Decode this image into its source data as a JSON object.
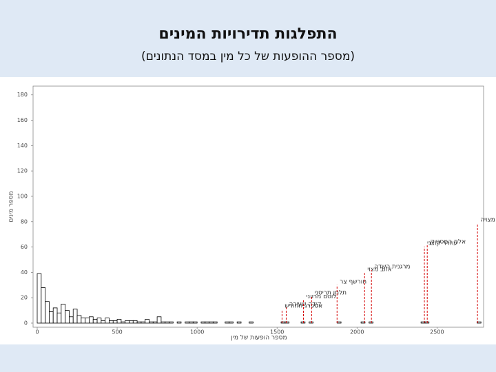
{
  "chart_data": {
    "type": "histogram",
    "title": "התפלגות תדירויות המינים",
    "subtitle": "(מספר ההופעות של כל מין במסד הנתונים)",
    "x_label": "מספר הופעות של מין",
    "y_label": "מספר מינים",
    "bins": [
      0,
      25,
      50,
      75,
      100,
      125,
      150,
      175,
      200,
      225,
      250,
      275,
      300,
      325,
      350,
      375,
      400,
      425,
      450,
      475,
      500,
      525,
      550,
      575,
      600,
      625,
      650,
      675,
      700,
      725,
      750,
      775,
      800,
      825,
      850,
      875,
      900,
      925,
      950,
      975,
      1000,
      1025,
      1050,
      1075,
      1100,
      1125,
      1150,
      1175,
      1200,
      1225,
      1250,
      1275,
      1300,
      1325,
      1350,
      1375,
      1400,
      1425,
      1450,
      1475,
      1500,
      1525,
      1550,
      1575,
      1600,
      1625,
      1650,
      1675,
      1700,
      1725,
      1750,
      1775,
      1800,
      1825,
      1850,
      1875,
      1900,
      1925,
      1950,
      1975,
      2000,
      2025,
      2050,
      2075,
      2100,
      2125,
      2150,
      2175,
      2200,
      2225,
      2250,
      2275,
      2300,
      2325,
      2350,
      2375,
      2400,
      2425,
      2450,
      2475,
      2500,
      2525,
      2550,
      2575,
      2600,
      2625,
      2650,
      2675,
      2700,
      2725,
      2750,
      2775
    ],
    "values": [
      39,
      28,
      17,
      9,
      12,
      8,
      15,
      10,
      5,
      11,
      6,
      4,
      4,
      5,
      3,
      4,
      2,
      4,
      2,
      2,
      3,
      1,
      2,
      2,
      2,
      1,
      1,
      3,
      1,
      1,
      5,
      1,
      1,
      1,
      0,
      1,
      0,
      1,
      1,
      1,
      0,
      1,
      1,
      1,
      1,
      0,
      0,
      1,
      1,
      0,
      1,
      0,
      0,
      1,
      0,
      0,
      0,
      0,
      0,
      0,
      0,
      1,
      1,
      0,
      0,
      0,
      1,
      0,
      1,
      0,
      0,
      0,
      0,
      0,
      0,
      1,
      0,
      0,
      0,
      0,
      0,
      1,
      0,
      1,
      0,
      0,
      0,
      0,
      0,
      0,
      0,
      0,
      0,
      0,
      0,
      0,
      1,
      1,
      0,
      0,
      0,
      0,
      0,
      0,
      0,
      0,
      0,
      0,
      0,
      0,
      1
    ],
    "color": "#ffffff",
    "edge_color": "#000000",
    "xlim": [
      0,
      2800
    ],
    "ylim": [
      0,
      188
    ],
    "xticks": [
      0,
      500,
      1000,
      1500,
      2000,
      2500
    ],
    "yticks": [
      0,
      20,
      40,
      60,
      80,
      100,
      120,
      140,
      160,
      180
    ],
    "annotation_color": "#d40000",
    "annotations": [
      {
        "label": "אספרג החורש",
        "x": 1531
      },
      {
        "label": "קידה שעירה",
        "x": 1557
      },
      {
        "label": "לוטם מרווני",
        "x": 1665
      },
      {
        "label": "תלתן תריסני",
        "x": 1716
      },
      {
        "label": "חורשף צר",
        "x": 1875
      },
      {
        "label": "אזוב מצוי",
        "x": 2047
      },
      {
        "label": "מרגנית השדה",
        "x": 2090
      },
      {
        "label": "עוזרר קוצני",
        "x": 2421
      },
      {
        "label": "אלת המסטיק",
        "x": 2439
      },
      {
        "label": "רקפת מצויה",
        "x": 2753
      }
    ]
  }
}
